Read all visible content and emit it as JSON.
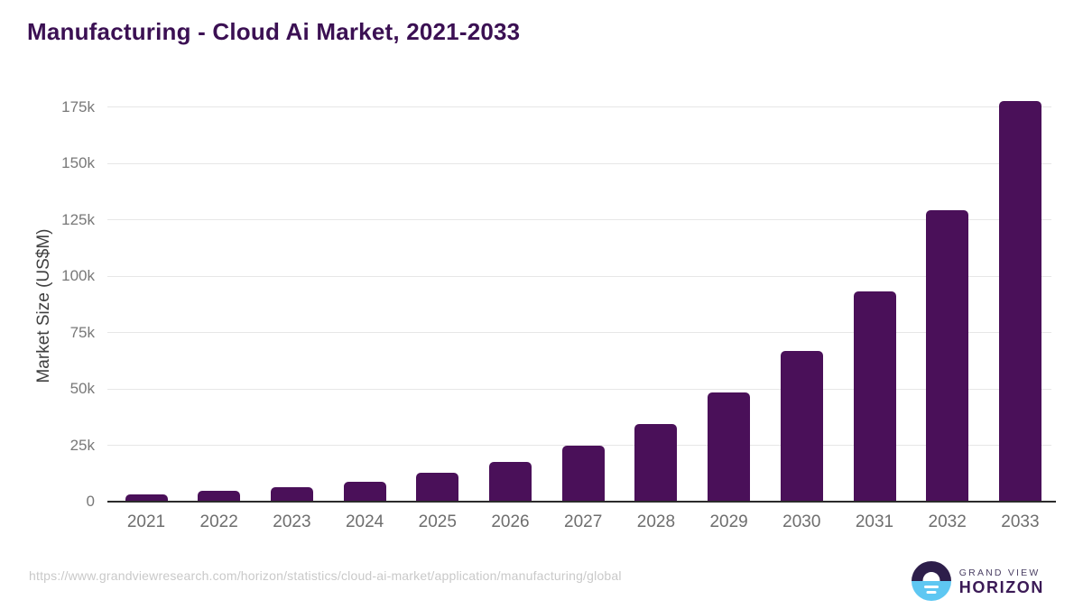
{
  "chart_data": {
    "type": "bar",
    "title": "Manufacturing - Cloud Ai Market, 2021-2033",
    "ylabel": "Market Size (US$M)",
    "xlabel": "",
    "categories": [
      "2021",
      "2022",
      "2023",
      "2024",
      "2025",
      "2026",
      "2027",
      "2028",
      "2029",
      "2030",
      "2031",
      "2032",
      "2033"
    ],
    "values": [
      3200,
      4700,
      6600,
      9000,
      12700,
      17500,
      24700,
      34600,
      48300,
      67000,
      93400,
      129400,
      177500
    ],
    "unit": "US$M",
    "ylim": [
      0,
      185000
    ],
    "ytick_values": [
      0,
      25000,
      50000,
      75000,
      100000,
      125000,
      150000,
      175000
    ],
    "ytick_labels": [
      "0",
      "25k",
      "50k",
      "75k",
      "100k",
      "125k",
      "150k",
      "175k"
    ],
    "grid": "horizontal",
    "legend_position": "none",
    "bar_color": "#4a1059",
    "title_color": "#3b1053",
    "gridline_color": "#e7e7e7",
    "axis_line_color": "#2b2b2b",
    "tick_label_color": "#6e6e6e"
  },
  "footer": {
    "source_url": "https://www.grandviewresearch.com/horizon/statistics/cloud-ai-market/application/manufacturing/global",
    "logo": {
      "line1": "GRAND VIEW",
      "line2": "HORIZON",
      "mark_top_color": "#2d1e4a",
      "mark_bottom_color": "#5ec7f2"
    }
  }
}
